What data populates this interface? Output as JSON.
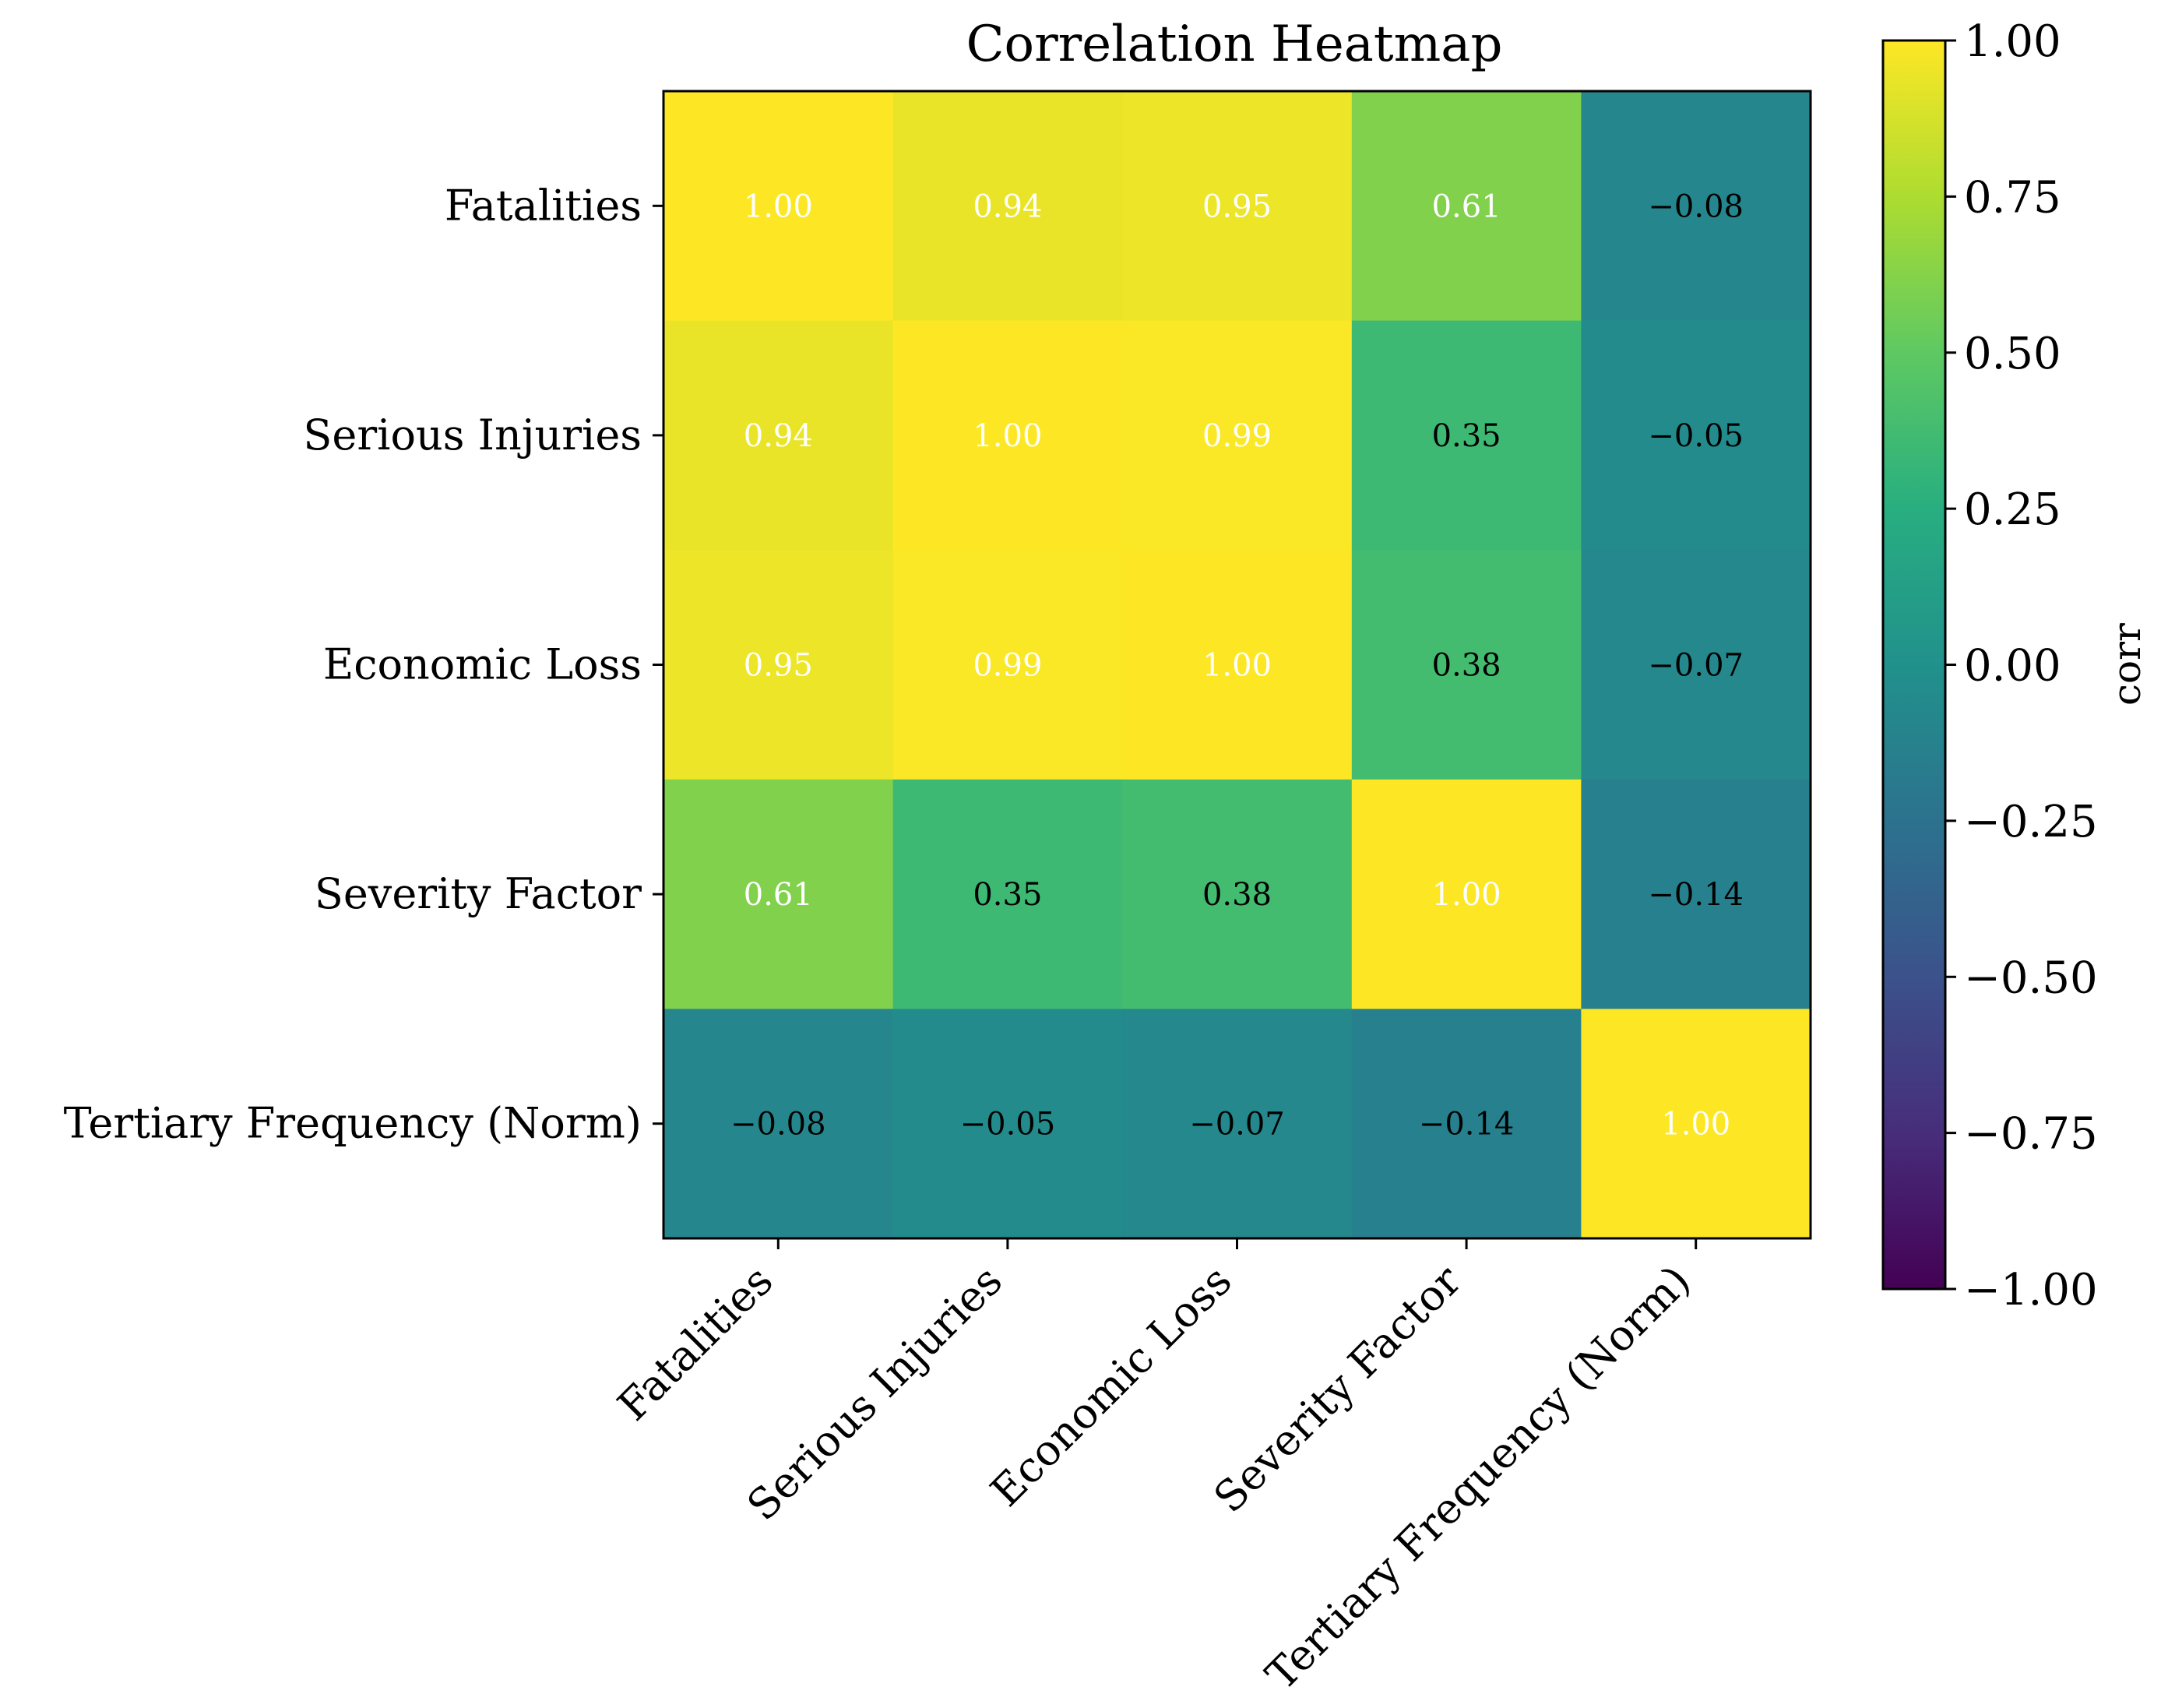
{
  "chart_data": {
    "type": "heatmap",
    "title": "Correlation Heatmap",
    "rows": [
      "Fatalities",
      "Serious Injuries",
      "Economic Loss",
      "Severity Factor",
      "Tertiary Frequency (Norm)"
    ],
    "columns": [
      "Fatalities",
      "Serious Injuries",
      "Economic Loss",
      "Severity Factor",
      "Tertiary Frequency (Norm)"
    ],
    "values": [
      [
        1.0,
        0.94,
        0.95,
        0.61,
        -0.08
      ],
      [
        0.94,
        1.0,
        0.99,
        0.35,
        -0.05
      ],
      [
        0.95,
        0.99,
        1.0,
        0.38,
        -0.07
      ],
      [
        0.61,
        0.35,
        0.38,
        1.0,
        -0.14
      ],
      [
        -0.08,
        -0.05,
        -0.07,
        -0.14,
        1.0
      ]
    ],
    "value_labels": [
      [
        "1.00",
        "0.94",
        "0.95",
        "0.61",
        "−0.08"
      ],
      [
        "0.94",
        "1.00",
        "0.99",
        "0.35",
        "−0.05"
      ],
      [
        "0.95",
        "0.99",
        "1.00",
        "0.38",
        "−0.07"
      ],
      [
        "0.61",
        "0.35",
        "0.38",
        "1.00",
        "−0.14"
      ],
      [
        "−0.08",
        "−0.05",
        "−0.07",
        "−0.14",
        "1.00"
      ]
    ],
    "colormap": "viridis",
    "vmin": -1.0,
    "vmax": 1.0,
    "colorbar": {
      "label": "corr",
      "ticks": [
        1.0,
        0.75,
        0.5,
        0.25,
        0.0,
        -0.25,
        -0.5,
        -0.75,
        -1.0
      ],
      "tick_labels": [
        "1.00",
        "0.75",
        "0.50",
        "0.25",
        "0.00",
        "−0.25",
        "−0.50",
        "−0.75",
        "−1.00"
      ]
    },
    "text_colors": {
      "light": "#ffffff",
      "dark": "#000000"
    },
    "text_threshold": 0.5
  }
}
